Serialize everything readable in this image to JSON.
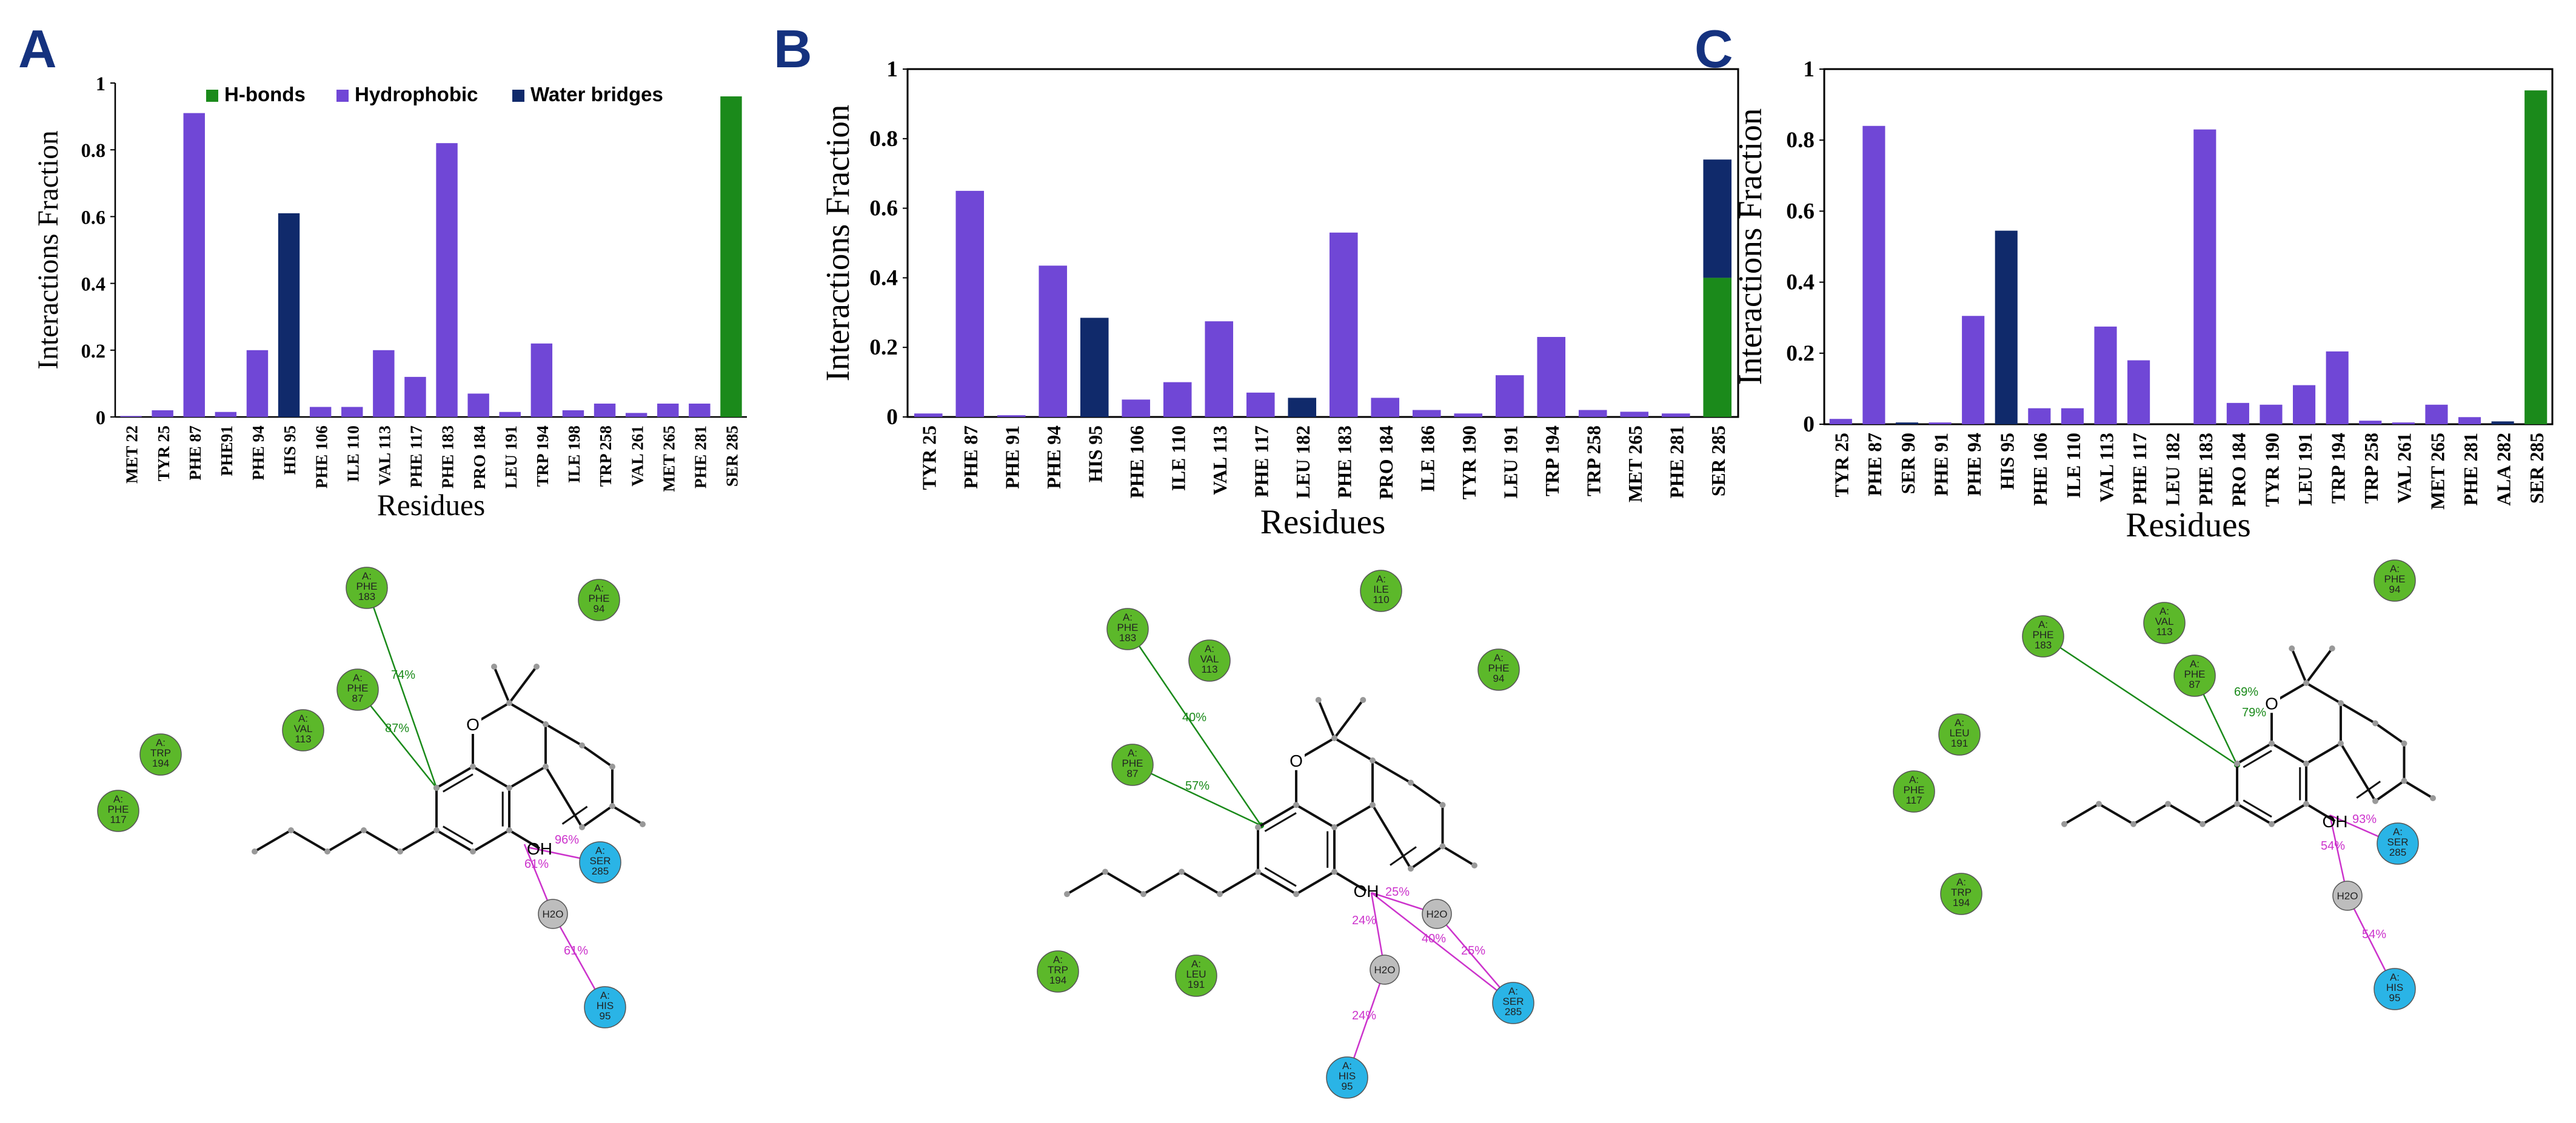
{
  "colors": {
    "hbond": "#1b8a1b",
    "hydrophobic": "#7047d6",
    "water": "#102a6b",
    "node_green": "#5cb82a",
    "node_blue": "#2ab4e6",
    "node_gray": "#bdbdbd",
    "hbond_line": "#1a8a1a",
    "water_line": "#cc33cc"
  },
  "legend": {
    "hbond": "H-bonds",
    "hydrophobic": "Hydrophobic",
    "water": "Water bridges"
  },
  "chart_data": [
    {
      "panel": "A",
      "type": "bar",
      "stacked": true,
      "ylabel": "Interactions Fraction",
      "xlabel": "Residues",
      "ylim": [
        0,
        1
      ],
      "yticks": [
        "0",
        "0.2",
        "0.4",
        "0.6",
        "0.8",
        "1"
      ],
      "legend_position": "top",
      "categories": [
        "MET 22",
        "TYR 25",
        "PHE 87",
        "PHE91",
        "PHE 94",
        "HIS 95",
        "PHE 106",
        "ILE 110",
        "VAL 113",
        "PHE 117",
        "PHE 183",
        "PRO 184",
        "LEU 191",
        "TRP 194",
        "ILE 198",
        "TRP 258",
        "VAL 261",
        "MET 265",
        "PHE 281",
        "SER 285"
      ],
      "series": [
        {
          "name": "H-bonds",
          "values": [
            0,
            0,
            0,
            0,
            0,
            0,
            0,
            0,
            0,
            0,
            0,
            0,
            0,
            0,
            0,
            0,
            0,
            0,
            0,
            0.96
          ]
        },
        {
          "name": "Hydrophobic",
          "values": [
            0.003,
            0.02,
            0.91,
            0.015,
            0.2,
            0,
            0.03,
            0.03,
            0.2,
            0.12,
            0.82,
            0.07,
            0.015,
            0.22,
            0.02,
            0.04,
            0.012,
            0.04,
            0.04,
            0
          ]
        },
        {
          "name": "Water bridges",
          "values": [
            0,
            0,
            0,
            0,
            0,
            0.61,
            0,
            0,
            0,
            0,
            0,
            0,
            0,
            0,
            0,
            0,
            0,
            0,
            0,
            0
          ]
        }
      ]
    },
    {
      "panel": "B",
      "type": "bar",
      "stacked": true,
      "ylabel": "Interactions Fraction",
      "xlabel": "Residues",
      "ylim": [
        0,
        1
      ],
      "yticks": [
        "0",
        "0.2",
        "0.4",
        "0.6",
        "0.8",
        "1"
      ],
      "categories": [
        "TYR 25",
        "PHE 87",
        "PHE 91",
        "PHE 94",
        "HIS 95",
        "PHE 106",
        "ILE 110",
        "VAL 113",
        "PHE 117",
        "LEU 182",
        "PHE 183",
        "PRO 184",
        "ILE 186",
        "TYR 190",
        "LEU 191",
        "TRP 194",
        "TRP 258",
        "MET 265",
        "PHE 281",
        "SER 285"
      ],
      "series": [
        {
          "name": "H-bonds",
          "values": [
            0,
            0,
            0,
            0,
            0,
            0,
            0,
            0,
            0,
            0,
            0,
            0,
            0,
            0,
            0,
            0,
            0,
            0,
            0,
            0.4
          ]
        },
        {
          "name": "Hydrophobic",
          "values": [
            0.01,
            0.65,
            0.005,
            0.435,
            0,
            0.05,
            0.1,
            0.275,
            0.07,
            0,
            0.53,
            0.055,
            0.02,
            0.01,
            0.12,
            0.23,
            0.02,
            0.015,
            0.01,
            0
          ]
        },
        {
          "name": "Water bridges",
          "values": [
            0,
            0,
            0,
            0,
            0.285,
            0,
            0,
            0,
            0,
            0.055,
            0,
            0,
            0,
            0,
            0,
            0,
            0,
            0,
            0,
            0.34
          ]
        }
      ]
    },
    {
      "panel": "C",
      "type": "bar",
      "stacked": true,
      "ylabel": "Interactions Fraction",
      "xlabel": "Residues",
      "ylim": [
        0,
        1
      ],
      "yticks": [
        "0",
        "0.2",
        "0.4",
        "0.6",
        "0.8",
        "1"
      ],
      "categories": [
        "TYR 25",
        "PHE 87",
        "SER 90",
        "PHE 91",
        "PHE 94",
        "HIS 95",
        "PHE 106",
        "ILE 110",
        "VAL 113",
        "PHE 117",
        "LEU 182",
        "PHE 183",
        "PRO 184",
        "TYR 190",
        "LEU 191",
        "TRP 194",
        "TRP 258",
        "VAL 261",
        "MET 265",
        "PHE 281",
        "ALA 282",
        "SER 285"
      ],
      "series": [
        {
          "name": "H-bonds",
          "values": [
            0,
            0,
            0,
            0,
            0,
            0,
            0,
            0,
            0,
            0,
            0,
            0,
            0,
            0,
            0,
            0,
            0,
            0,
            0,
            0,
            0,
            0.94
          ]
        },
        {
          "name": "Hydrophobic",
          "values": [
            0.015,
            0.84,
            0,
            0.005,
            0.305,
            0,
            0.045,
            0.045,
            0.275,
            0.18,
            0,
            0.83,
            0.06,
            0.055,
            0.11,
            0.205,
            0.01,
            0.005,
            0.055,
            0.02,
            0,
            0
          ]
        },
        {
          "name": "Water bridges",
          "values": [
            0,
            0,
            0.005,
            0,
            0,
            0.545,
            0,
            0,
            0,
            0,
            0,
            0,
            0,
            0,
            0,
            0,
            0,
            0,
            0,
            0,
            0.008,
            0
          ]
        }
      ]
    }
  ],
  "diagrams": [
    {
      "panel": "A",
      "residues": [
        {
          "text": "A: PHE 183",
          "type": "green"
        },
        {
          "text": "A: PHE 94",
          "type": "green"
        },
        {
          "text": "A: PHE 87",
          "type": "green"
        },
        {
          "text": "A: VAL 113",
          "type": "green"
        },
        {
          "text": "A: TRP 194",
          "type": "green"
        },
        {
          "text": "A: PHE 117",
          "type": "green"
        },
        {
          "text": "A: SER 285",
          "type": "blue"
        },
        {
          "text": "A: HIS 95",
          "type": "blue"
        },
        {
          "text": "H2O",
          "type": "gray"
        }
      ],
      "labels": [
        "74%",
        "87%",
        "96%",
        "61%",
        "61%",
        "OH",
        "O"
      ]
    },
    {
      "panel": "B",
      "residues": [
        {
          "text": "A: ILE 110",
          "type": "green"
        },
        {
          "text": "A: PHE 183",
          "type": "green"
        },
        {
          "text": "A: VAL 113",
          "type": "green"
        },
        {
          "text": "A: PHE 94",
          "type": "green"
        },
        {
          "text": "A: PHE 87",
          "type": "green"
        },
        {
          "text": "A: TRP 194",
          "type": "green"
        },
        {
          "text": "A: LEU 191",
          "type": "green"
        },
        {
          "text": "A: SER 285",
          "type": "blue"
        },
        {
          "text": "A: HIS 95",
          "type": "blue"
        },
        {
          "text": "H2O",
          "type": "gray"
        },
        {
          "text": "H2O",
          "type": "gray"
        }
      ],
      "labels": [
        "40%",
        "57%",
        "25%",
        "40%",
        "25%",
        "24%",
        "24%",
        "OH",
        "O"
      ]
    },
    {
      "panel": "C",
      "residues": [
        {
          "text": "A: PHE 94",
          "type": "green"
        },
        {
          "text": "A: PHE 183",
          "type": "green"
        },
        {
          "text": "A: VAL 113",
          "type": "green"
        },
        {
          "text": "A: PHE 87",
          "type": "green"
        },
        {
          "text": "A: LEU 191",
          "type": "green"
        },
        {
          "text": "A: PHE 117",
          "type": "green"
        },
        {
          "text": "A: TRP 194",
          "type": "green"
        },
        {
          "text": "A: SER 285",
          "type": "blue"
        },
        {
          "text": "A: HIS 95",
          "type": "blue"
        },
        {
          "text": "H2O",
          "type": "gray"
        }
      ],
      "labels": [
        "69%",
        "79%",
        "93%",
        "54%",
        "54%",
        "OH",
        "O"
      ]
    }
  ]
}
